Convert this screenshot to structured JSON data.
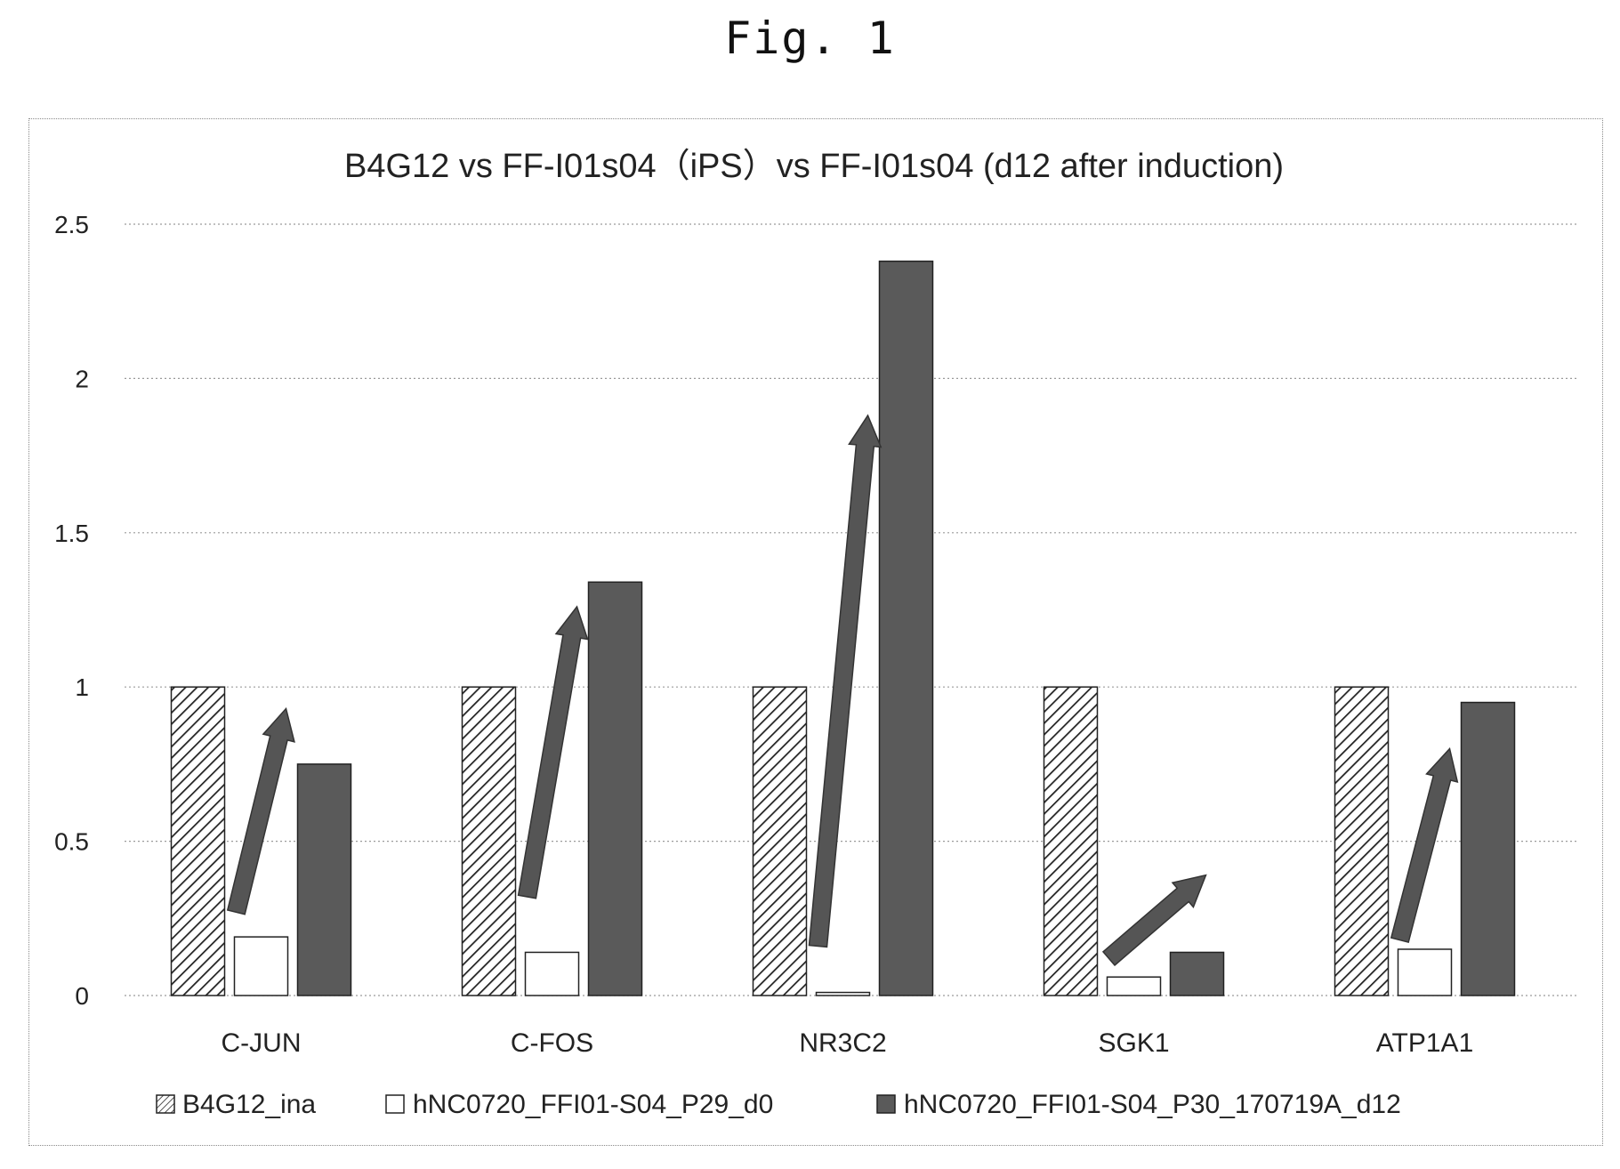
{
  "figure_label": "Fig. 1",
  "chart_data": {
    "type": "bar",
    "title": "B4G12 vs FF-I01s04（iPS）vs FF-I01s04 (d12 after induction)",
    "xlabel": "",
    "ylabel": "",
    "ylim": [
      0,
      2.5
    ],
    "yticks": [
      "0",
      "0.5",
      "1",
      "1.5",
      "2",
      "2.5"
    ],
    "grid": true,
    "legend_position": "bottom",
    "categories": [
      "C-JUN",
      "C-FOS",
      "NR3C2",
      "SGK1",
      "ATP1A1"
    ],
    "series": [
      {
        "name": "B4G12_ina",
        "pattern": "hatched",
        "color": "#222222",
        "values": [
          1.0,
          1.0,
          1.0,
          1.0,
          1.0
        ]
      },
      {
        "name": "hNC0720_FFI01-S04_P29_d0",
        "pattern": "open",
        "color": "#ffffff",
        "values": [
          0.19,
          0.14,
          0.01,
          0.06,
          0.15
        ]
      },
      {
        "name": "hNC0720_FFI01-S04_P30_170719A_d12",
        "pattern": "solid",
        "color": "#5a5a5a",
        "values": [
          0.75,
          1.34,
          2.38,
          0.14,
          0.95
        ]
      }
    ],
    "annotations": [
      {
        "type": "arrow",
        "category": "C-JUN",
        "from": 0.27,
        "to": 0.93
      },
      {
        "type": "arrow",
        "category": "C-FOS",
        "from": 0.32,
        "to": 1.26
      },
      {
        "type": "arrow",
        "category": "NR3C2",
        "from": 0.16,
        "to": 1.88
      },
      {
        "type": "arrow",
        "category": "SGK1",
        "from": 0.12,
        "to": 0.39
      },
      {
        "type": "arrow",
        "category": "ATP1A1",
        "from": 0.18,
        "to": 0.8
      }
    ]
  }
}
